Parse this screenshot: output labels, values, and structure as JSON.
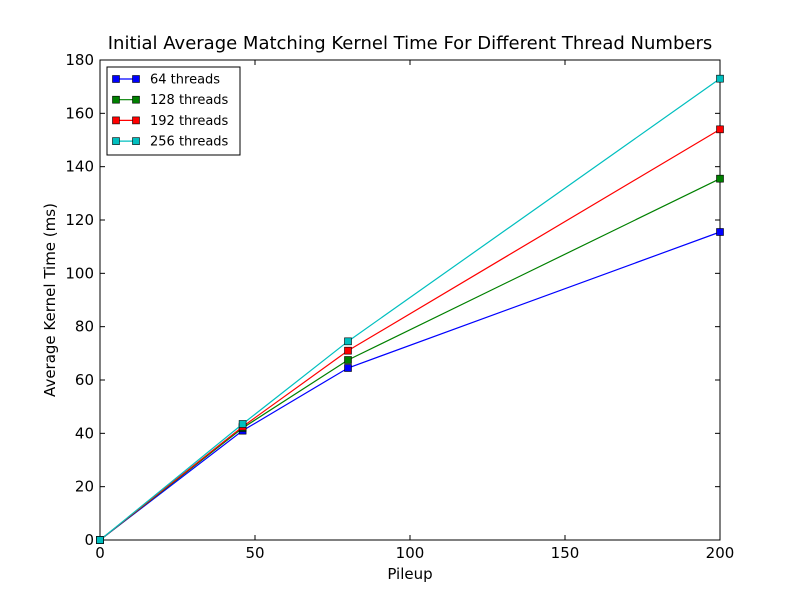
{
  "chart_data": {
    "type": "line",
    "title": "Initial Average Matching Kernel Time For Different Thread Numbers",
    "xlabel": "Pileup",
    "ylabel": "Average Kernel Time (ms)",
    "xlim": [
      0,
      200
    ],
    "ylim": [
      0,
      180
    ],
    "xticks": [
      0,
      50,
      100,
      150,
      200
    ],
    "yticks": [
      0,
      20,
      40,
      60,
      80,
      100,
      120,
      140,
      160,
      180
    ],
    "grid": false,
    "legend_position": "upper-left",
    "x": [
      0,
      46,
      80,
      200
    ],
    "series": [
      {
        "name": "64 threads",
        "color": "#0000ff",
        "marker": "square",
        "values": [
          0,
          41,
          64.5,
          115.5
        ]
      },
      {
        "name": "128 threads",
        "color": "#008000",
        "marker": "square",
        "values": [
          0,
          42,
          67.5,
          135.5
        ]
      },
      {
        "name": "192 threads",
        "color": "#ff0000",
        "marker": "square",
        "values": [
          0,
          42.5,
          71,
          154
        ]
      },
      {
        "name": "256 threads",
        "color": "#00bfbf",
        "marker": "square",
        "values": [
          0,
          43.5,
          74.5,
          173
        ]
      }
    ]
  }
}
